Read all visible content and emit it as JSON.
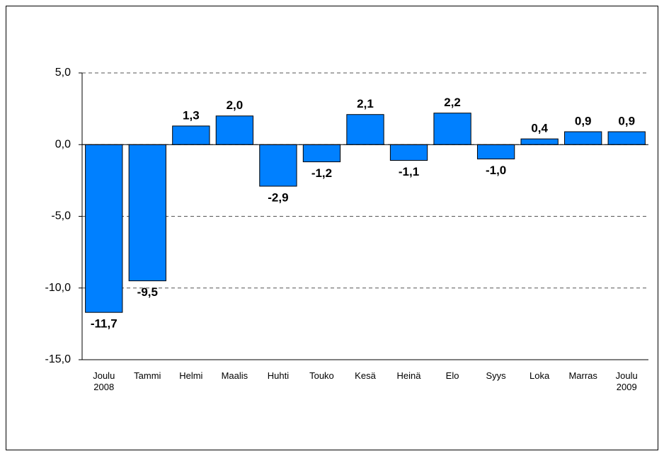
{
  "chart_data": {
    "type": "bar",
    "categories": [
      "Joulu\n2008",
      "Tammi",
      "Helmi",
      "Maalis",
      "Huhti",
      "Touko",
      "Kesä",
      "Heinä",
      "Elo",
      "Syys",
      "Loka",
      "Marras",
      "Joulu\n2009"
    ],
    "values": [
      -11.7,
      -9.5,
      1.3,
      2.0,
      -2.9,
      -1.2,
      2.1,
      -1.1,
      2.2,
      -1.0,
      0.4,
      0.9,
      0.9
    ],
    "value_labels": [
      "-11,7",
      "-9,5",
      "1,3",
      "2,0",
      "-2,9",
      "-1,2",
      "2,1",
      "-1,1",
      "2,2",
      "-1,0",
      "0,4",
      "0,9",
      "0,9"
    ],
    "color": "#0080ff",
    "ylim": [
      -15,
      5
    ],
    "yticks": [
      {
        "value": -15,
        "label": "-15,0"
      },
      {
        "value": -10,
        "label": "-10,0"
      },
      {
        "value": -5,
        "label": "-5,0"
      },
      {
        "value": 0,
        "label": "0,0"
      },
      {
        "value": 5,
        "label": "5,0"
      }
    ],
    "grid": true
  }
}
